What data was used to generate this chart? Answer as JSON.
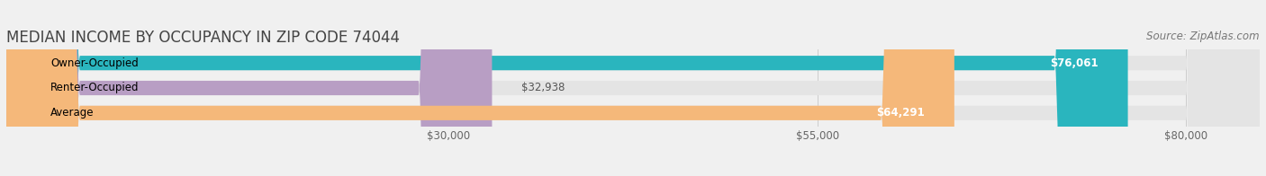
{
  "title": "MEDIAN INCOME BY OCCUPANCY IN ZIP CODE 74044",
  "source": "Source: ZipAtlas.com",
  "categories": [
    "Owner-Occupied",
    "Renter-Occupied",
    "Average"
  ],
  "values": [
    76061,
    32938,
    64291
  ],
  "bar_colors": [
    "#2ab5be",
    "#b89ec4",
    "#f5b87a"
  ],
  "value_labels": [
    "$76,061",
    "$32,938",
    "$64,291"
  ],
  "label_inside": [
    true,
    false,
    true
  ],
  "x_ticks": [
    30000,
    55000,
    80000
  ],
  "x_tick_labels": [
    "$30,000",
    "$55,000",
    "$80,000"
  ],
  "xlim": [
    0,
    85000
  ],
  "background_color": "#f0f0f0",
  "bar_bg_color": "#e4e4e4",
  "title_fontsize": 12,
  "source_fontsize": 8.5,
  "label_fontsize": 8.5,
  "bar_height": 0.58
}
